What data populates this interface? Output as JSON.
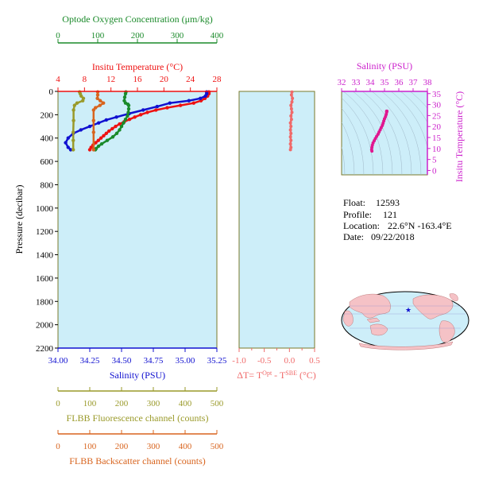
{
  "colors": {
    "oxygen": "#1a8a2a",
    "temperature": "#ee1111",
    "salinity": "#1010d0",
    "delta_t": "#f06a6a",
    "fluorescence": "#9a9a2a",
    "backscatter": "#d8641e",
    "ts_axis": "#cc22cc",
    "panel_bg": "#cdeef9",
    "frame": "#7a7a2a"
  },
  "chart_data": [
    {
      "type": "line",
      "ylabel": "Pressure (decibar)",
      "ylim": [
        2200,
        0
      ],
      "yticks": [
        "0",
        "200",
        "400",
        "600",
        "800",
        "1000",
        "1200",
        "1400",
        "1600",
        "1800",
        "2000",
        "2200"
      ],
      "axes": {
        "oxygen": {
          "label": "Optode Oxygen Concentration (μm/kg)",
          "range": [
            0,
            400
          ],
          "ticks": [
            "0",
            "100",
            "200",
            "300",
            "400"
          ]
        },
        "temperature": {
          "label": "Insitu Temperature (°C)",
          "range": [
            4,
            28
          ],
          "ticks": [
            "4",
            "8",
            "12",
            "16",
            "20",
            "24",
            "28"
          ]
        },
        "salinity": {
          "label": "Salinity (PSU)",
          "range": [
            34.0,
            35.25
          ],
          "ticks": [
            "34.00",
            "34.25",
            "34.50",
            "34.75",
            "35.00",
            "35.25"
          ]
        },
        "fluorescence": {
          "label": "FLBB Fluorescence channel (counts)",
          "range": [
            0,
            500
          ],
          "ticks": [
            "0",
            "100",
            "200",
            "300",
            "400",
            "500"
          ]
        },
        "backscatter": {
          "label": "FLBB Backscatter channel (counts)",
          "range": [
            0,
            500
          ],
          "ticks": [
            "0",
            "100",
            "200",
            "300",
            "400",
            "500"
          ]
        }
      },
      "series": [
        {
          "name": "Insitu Temperature (°C)",
          "axis": "temperature",
          "points": [
            [
              26.8,
              5
            ],
            [
              26.8,
              20
            ],
            [
              26.6,
              40
            ],
            [
              26.2,
              60
            ],
            [
              25.6,
              80
            ],
            [
              24.5,
              100
            ],
            [
              22.5,
              120
            ],
            [
              20.5,
              140
            ],
            [
              18.8,
              160
            ],
            [
              17.5,
              180
            ],
            [
              16.5,
              200
            ],
            [
              15.6,
              220
            ],
            [
              14.8,
              240
            ],
            [
              14.0,
              260
            ],
            [
              13.3,
              280
            ],
            [
              12.7,
              300
            ],
            [
              12.2,
              320
            ],
            [
              11.7,
              340
            ],
            [
              11.3,
              360
            ],
            [
              10.9,
              380
            ],
            [
              10.5,
              400
            ],
            [
              10.1,
              420
            ],
            [
              9.7,
              440
            ],
            [
              9.3,
              460
            ],
            [
              9.0,
              480
            ],
            [
              8.8,
              500
            ]
          ]
        },
        {
          "name": "Salinity (PSU)",
          "axis": "salinity",
          "points": [
            [
              35.17,
              5
            ],
            [
              35.17,
              20
            ],
            [
              35.16,
              40
            ],
            [
              35.12,
              60
            ],
            [
              35.03,
              80
            ],
            [
              34.88,
              100
            ],
            [
              34.78,
              130
            ],
            [
              34.67,
              160
            ],
            [
              34.56,
              190
            ],
            [
              34.46,
              220
            ],
            [
              34.38,
              245
            ],
            [
              34.32,
              270
            ],
            [
              34.25,
              300
            ],
            [
              34.18,
              330
            ],
            [
              34.12,
              360
            ],
            [
              34.08,
              400
            ],
            [
              34.06,
              440
            ],
            [
              34.08,
              480
            ],
            [
              34.1,
              500
            ]
          ]
        },
        {
          "name": "Optode Oxygen Concentration (μm/kg)",
          "axis": "oxygen",
          "points": [
            [
              171,
              5
            ],
            [
              170,
              20
            ],
            [
              168,
              50
            ],
            [
              167,
              80
            ],
            [
              170,
              100
            ],
            [
              176,
              110
            ],
            [
              178,
              120
            ],
            [
              178,
              150
            ],
            [
              177,
              180
            ],
            [
              175,
              210
            ],
            [
              170,
              240
            ],
            [
              165,
              270
            ],
            [
              160,
              300
            ],
            [
              155,
              330
            ],
            [
              148,
              360
            ],
            [
              138,
              390
            ],
            [
              124,
              420
            ],
            [
              110,
              450
            ],
            [
              102,
              470
            ],
            [
              96,
              490
            ],
            [
              94,
              500
            ]
          ]
        },
        {
          "name": "FLBB Fluorescence channel (counts)",
          "axis": "fluorescence",
          "points": [
            [
              68,
              5
            ],
            [
              70,
              20
            ],
            [
              73,
              40
            ],
            [
              80,
              60
            ],
            [
              78,
              80
            ],
            [
              60,
              100
            ],
            [
              52,
              120
            ],
            [
              49,
              160
            ],
            [
              49,
              250
            ],
            [
              48,
              350
            ],
            [
              48,
              420
            ],
            [
              48,
              500
            ]
          ]
        },
        {
          "name": "FLBB Backscatter channel (counts)",
          "axis": "backscatter",
          "points": [
            [
              125,
              5
            ],
            [
              125,
              30
            ],
            [
              124,
              60
            ],
            [
              133,
              80
            ],
            [
              143,
              100
            ],
            [
              132,
              120
            ],
            [
              118,
              140
            ],
            [
              112,
              160
            ],
            [
              112,
              250
            ],
            [
              112,
              350
            ],
            [
              112,
              500
            ]
          ]
        }
      ]
    },
    {
      "type": "scatter",
      "xlabel": "ΔT= T",
      "xlabel_sup1": "Opt",
      "xlabel_mid": " - T",
      "xlabel_sup2": "SBE",
      "xlabel_unit": " (°C)",
      "xlim": [
        -1.0,
        0.5
      ],
      "xticks": [
        "-1.0",
        "-0.5",
        "0.0",
        "0.5"
      ],
      "ylim": [
        2200,
        0
      ],
      "points": [
        [
          0.05,
          5
        ],
        [
          0.04,
          30
        ],
        [
          0.06,
          60
        ],
        [
          0.05,
          90
        ],
        [
          0.03,
          120
        ],
        [
          0.04,
          150
        ],
        [
          0.05,
          180
        ],
        [
          0.03,
          210
        ],
        [
          0.04,
          240
        ],
        [
          0.02,
          270
        ],
        [
          0.03,
          300
        ],
        [
          0.02,
          330
        ],
        [
          0.03,
          360
        ],
        [
          0.02,
          390
        ],
        [
          0.03,
          420
        ],
        [
          0.02,
          450
        ],
        [
          0.03,
          480
        ],
        [
          0.02,
          500
        ]
      ]
    },
    {
      "type": "scatter",
      "title": "Salinity (PSU)",
      "ylabel": "Insitu Temperature (°C)",
      "xlim": [
        32,
        38
      ],
      "ylim": [
        -2,
        36
      ],
      "xticks": [
        "32",
        "33",
        "34",
        "35",
        "36",
        "37",
        "38"
      ],
      "yticks": [
        "0",
        "5",
        "10",
        "15",
        "20",
        "25",
        "30",
        "35"
      ],
      "points": [
        [
          34.12,
          8.8
        ],
        [
          34.1,
          9.5
        ],
        [
          34.12,
          10.5
        ],
        [
          34.15,
          11.5
        ],
        [
          34.2,
          12.5
        ],
        [
          34.28,
          13.5
        ],
        [
          34.36,
          14.5
        ],
        [
          34.45,
          15.5
        ],
        [
          34.55,
          16.5
        ],
        [
          34.62,
          17.5
        ],
        [
          34.7,
          18.5
        ],
        [
          34.77,
          19.5
        ],
        [
          34.85,
          20.5
        ],
        [
          34.9,
          21.5
        ],
        [
          34.95,
          22.5
        ],
        [
          35.0,
          23.5
        ],
        [
          35.07,
          24.5
        ],
        [
          35.12,
          25.5
        ],
        [
          35.15,
          26.5
        ],
        [
          35.15,
          27
        ],
        [
          35.17,
          27
        ]
      ]
    }
  ],
  "info": {
    "float_label": "Float:",
    "float_value": "12593",
    "profile_label": "Profile:",
    "profile_value": "121",
    "location_label": "Location:",
    "location_value": "22.6°N  -163.4°E",
    "date_label": "Date:",
    "date_value": "09/22/2018"
  },
  "map": {
    "icon": "world-map-icon"
  }
}
